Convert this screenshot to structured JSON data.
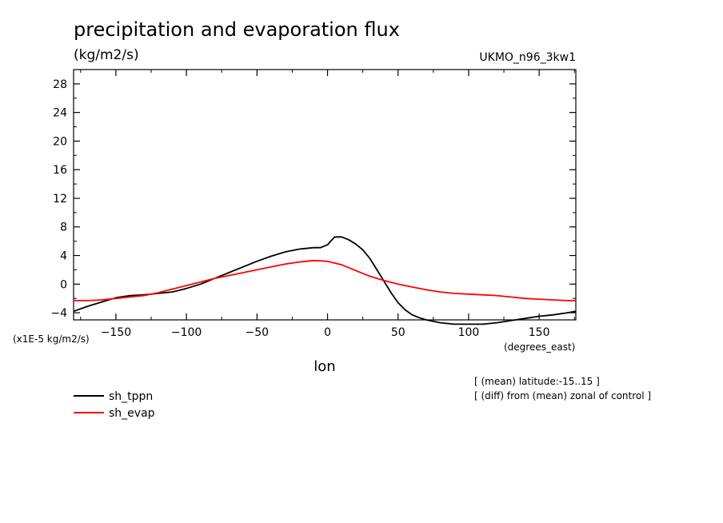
{
  "chart_data": {
    "type": "line",
    "title": "precipitation and evaporation flux",
    "units": "(kg/m2/s)",
    "model": "UKMO_n96_3kw1",
    "scale_label": "(x1E-5 kg/m2/s)",
    "xlabel": "lon",
    "xunits": "(degrees_east)",
    "notes": [
      "[ (mean) latitude:-15..15 ]",
      "[ (diff) from (mean) zonal of control ]"
    ],
    "xlim": [
      -180,
      176
    ],
    "ylim": [
      -5,
      30
    ],
    "xticks": [
      -150,
      -100,
      -50,
      0,
      50,
      100,
      150
    ],
    "xtick_labels": [
      "−150",
      "−100",
      "−50",
      "0",
      "50",
      "100",
      "150"
    ],
    "yticks": [
      -4,
      0,
      4,
      8,
      12,
      16,
      20,
      24,
      28
    ],
    "ytick_labels": [
      "−4",
      "0",
      "4",
      "8",
      "12",
      "16",
      "20",
      "24",
      "28"
    ],
    "legend_position": "bottom-left",
    "series": [
      {
        "name": "sh_tppn",
        "color": "#000000",
        "x": [
          -180,
          -170,
          -160,
          -150,
          -140,
          -130,
          -120,
          -110,
          -100,
          -90,
          -80,
          -70,
          -60,
          -50,
          -40,
          -30,
          -20,
          -10,
          -5,
          0,
          5,
          10,
          15,
          20,
          25,
          30,
          35,
          40,
          45,
          50,
          55,
          60,
          65,
          70,
          80,
          90,
          100,
          110,
          120,
          130,
          140,
          150,
          160,
          170,
          176
        ],
        "values": [
          -3.8,
          -3.1,
          -2.5,
          -1.9,
          -1.6,
          -1.5,
          -1.3,
          -1.1,
          -0.6,
          0.0,
          0.8,
          1.6,
          2.4,
          3.2,
          3.9,
          4.5,
          4.9,
          5.1,
          5.1,
          5.5,
          6.6,
          6.6,
          6.2,
          5.6,
          4.8,
          3.6,
          2.0,
          0.4,
          -1.2,
          -2.6,
          -3.6,
          -4.3,
          -4.7,
          -5.0,
          -5.4,
          -5.6,
          -5.6,
          -5.6,
          -5.4,
          -5.1,
          -4.8,
          -4.5,
          -4.3,
          -4.0,
          -3.8
        ]
      },
      {
        "name": "sh_evap",
        "color": "#ff0000",
        "x": [
          -180,
          -170,
          -160,
          -150,
          -140,
          -130,
          -120,
          -110,
          -100,
          -90,
          -80,
          -70,
          -60,
          -50,
          -40,
          -30,
          -20,
          -10,
          0,
          10,
          20,
          30,
          40,
          50,
          60,
          70,
          80,
          90,
          100,
          110,
          120,
          130,
          140,
          150,
          160,
          170,
          176
        ],
        "values": [
          -2.3,
          -2.3,
          -2.2,
          -2.0,
          -1.8,
          -1.6,
          -1.2,
          -0.7,
          -0.2,
          0.3,
          0.8,
          1.2,
          1.6,
          2.0,
          2.4,
          2.8,
          3.1,
          3.3,
          3.2,
          2.7,
          1.9,
          1.1,
          0.5,
          0.0,
          -0.4,
          -0.8,
          -1.1,
          -1.3,
          -1.4,
          -1.5,
          -1.6,
          -1.8,
          -2.0,
          -2.1,
          -2.2,
          -2.3,
          -2.3
        ]
      }
    ]
  }
}
